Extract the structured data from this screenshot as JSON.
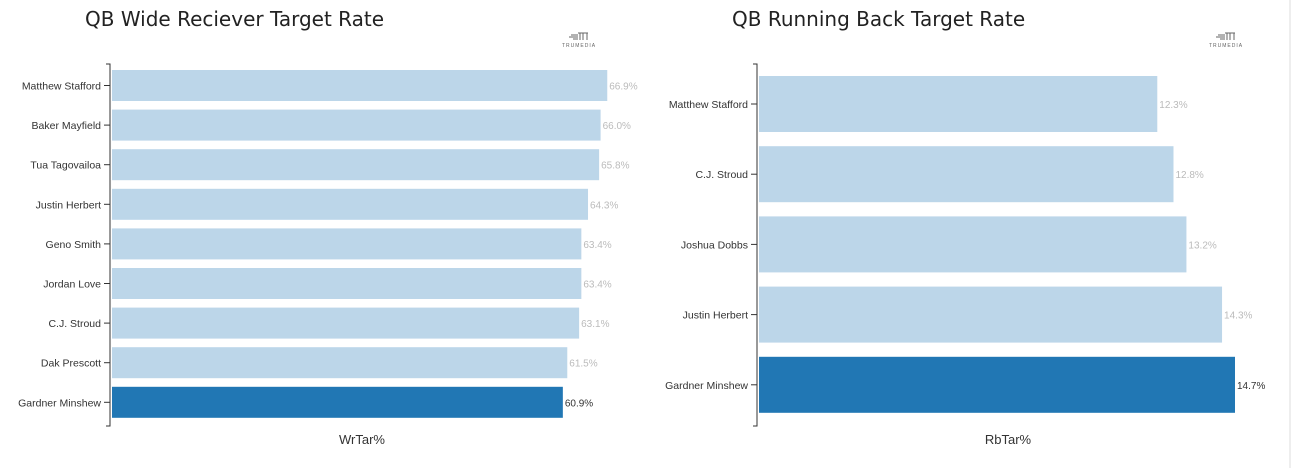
{
  "chart_data": [
    {
      "type": "bar",
      "orientation": "horizontal",
      "title": "QB Wide Reciever Target Rate",
      "xlabel": "WrTar%",
      "ylabel": "",
      "logo": "TRUMEDIA",
      "categories": [
        "Matthew Stafford",
        "Baker Mayfield",
        "Tua Tagovailoa",
        "Justin Herbert",
        "Geno Smith",
        "Jordan Love",
        "C.J. Stroud",
        "Dak Prescott",
        "Gardner Minshew"
      ],
      "values": [
        66.9,
        66.0,
        65.8,
        64.3,
        63.4,
        63.4,
        63.1,
        61.5,
        60.9
      ],
      "labels": [
        "66.9%",
        "66.0%",
        "65.8%",
        "64.3%",
        "63.4%",
        "63.4%",
        "63.1%",
        "61.5%",
        "60.9%"
      ],
      "highlight": "Gardner Minshew",
      "xlim": [
        0,
        67
      ],
      "colors": {
        "bar": "#bcd6e9",
        "highlight": "#2177b4"
      }
    },
    {
      "type": "bar",
      "orientation": "horizontal",
      "title": "QB Running Back Target Rate",
      "xlabel": "RbTar%",
      "ylabel": "",
      "logo": "TRUMEDIA",
      "categories": [
        "Matthew Stafford",
        "C.J. Stroud",
        "Joshua Dobbs",
        "Justin Herbert",
        "Gardner Minshew"
      ],
      "values": [
        12.3,
        12.8,
        13.2,
        14.3,
        14.7
      ],
      "labels": [
        "12.3%",
        "12.8%",
        "13.2%",
        "14.3%",
        "14.7%"
      ],
      "highlight": "Gardner Minshew",
      "xlim": [
        0,
        14.7
      ],
      "colors": {
        "bar": "#bcd6e9",
        "highlight": "#2177b4"
      }
    }
  ]
}
